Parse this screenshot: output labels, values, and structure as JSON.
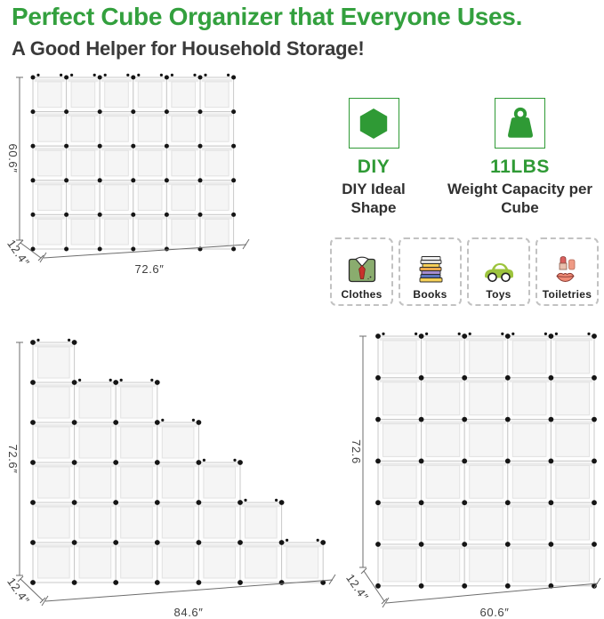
{
  "header": {
    "title": "Perfect Cube Organizer that Everyone Uses.",
    "subtitle": "A Good Helper for Household Storage!"
  },
  "colors": {
    "title_green": "#33a03e",
    "icon_green": "#2f9a35",
    "text_dark": "#3a3a3a",
    "connector_dot": "#151515",
    "cube_frame": "#c9c9c9"
  },
  "features": [
    {
      "icon": "hexagon-icon",
      "label": "DIY",
      "desc": "DIY Ideal Shape"
    },
    {
      "icon": "weight-icon",
      "label": "11LBS",
      "desc": "Weight Capacity per Cube"
    }
  ],
  "categories": [
    {
      "icon": "shirt-icon",
      "label": "Clothes"
    },
    {
      "icon": "books-icon",
      "label": "Books"
    },
    {
      "icon": "toy-car-icon",
      "label": "Toys"
    },
    {
      "icon": "cosmetics-icon",
      "label": "Toiletries"
    }
  ],
  "organizers": [
    {
      "name": "wide 6x5 cube unit",
      "columns": 6,
      "rows": 5,
      "column_heights": [
        5,
        5,
        5,
        5,
        5,
        5
      ],
      "width_label": "72.6″",
      "height_label": "60.6″",
      "depth_label": "12.4″"
    },
    {
      "name": "staircase cube unit",
      "columns": 7,
      "rows": 6,
      "column_heights": [
        6,
        5,
        5,
        4,
        3,
        2,
        1
      ],
      "width_label": "84.6″",
      "height_label": "72.6″",
      "depth_label": "12.4″"
    },
    {
      "name": "tall 5x6 cube unit",
      "columns": 5,
      "rows": 6,
      "column_heights": [
        6,
        6,
        6,
        6,
        6
      ],
      "width_label": "60.6″",
      "height_label": "72.6",
      "depth_label": "12.4″"
    }
  ]
}
